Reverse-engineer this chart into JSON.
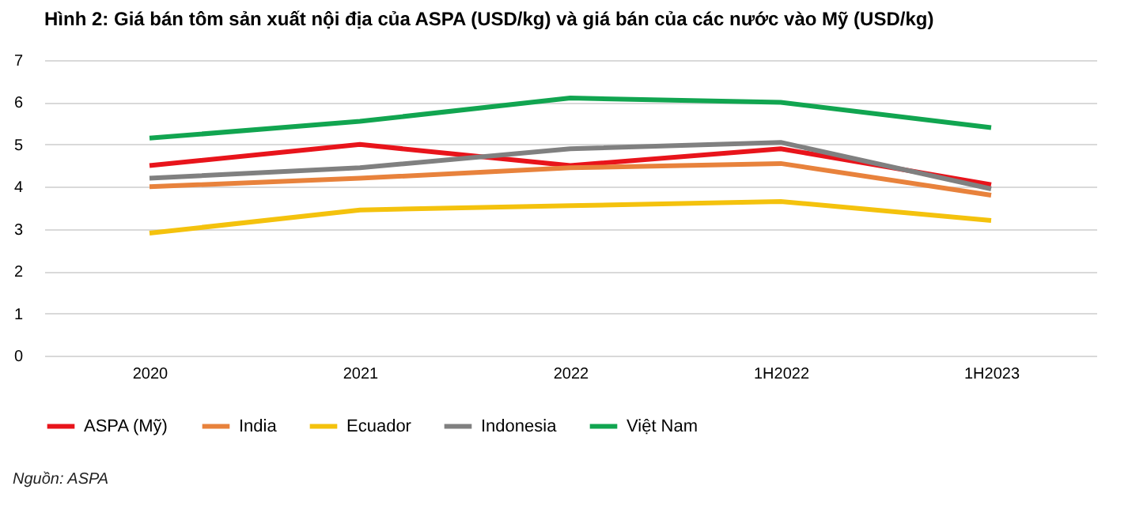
{
  "chart_data": {
    "type": "line",
    "title": "Hình 2: Giá bán tôm sản xuất nội địa của ASPA (USD/kg) và giá bán của các nước vào Mỹ (USD/kg)",
    "categories": [
      "2020",
      "2021",
      "2022",
      "1H2022",
      "1H2023"
    ],
    "series": [
      {
        "name": "ASPA (Mỹ)",
        "color": "#e8141b",
        "values": [
          4.5,
          5.0,
          4.5,
          4.9,
          4.05
        ]
      },
      {
        "name": "India",
        "color": "#e8823c",
        "values": [
          4.0,
          4.2,
          4.45,
          4.55,
          3.8
        ]
      },
      {
        "name": "Ecuador",
        "color": "#f4c20d",
        "values": [
          2.9,
          3.45,
          3.55,
          3.65,
          3.2
        ]
      },
      {
        "name": "Indonesia",
        "color": "#808080",
        "values": [
          4.2,
          4.45,
          4.9,
          5.05,
          3.95
        ]
      },
      {
        "name": "Việt Nam",
        "color": "#11a550",
        "values": [
          5.15,
          5.55,
          6.1,
          6.0,
          5.4
        ]
      }
    ],
    "ylim": [
      0,
      7
    ],
    "yticks": [
      0,
      1,
      2,
      3,
      4,
      5,
      6,
      7
    ],
    "grid": "y",
    "legend": "bottom",
    "marker": "none",
    "line_style": "solid",
    "annotations": [
      "Nguồn: ASPA"
    ]
  }
}
